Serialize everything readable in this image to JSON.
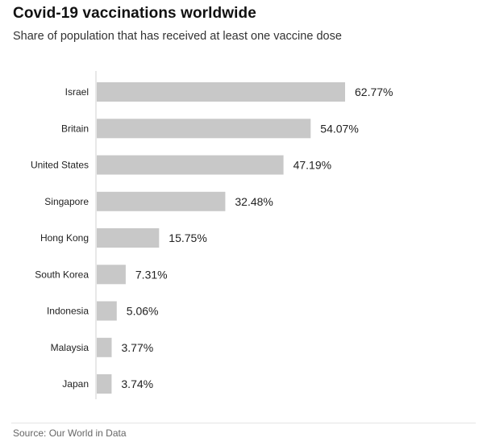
{
  "header": {
    "title": "Covid-19 vaccinations worldwide",
    "subtitle": "Share of population that has received at least one vaccine dose"
  },
  "footer": {
    "source": "Source: Our World in Data"
  },
  "colors": {
    "bar": "#c8c8c8",
    "axis": "#d0d0d0",
    "label": "#222222"
  },
  "chart_data": {
    "type": "bar",
    "orientation": "horizontal",
    "title": "Covid-19 vaccinations worldwide",
    "subtitle": "Share of population that has received at least one vaccine dose",
    "categories": [
      "Israel",
      "Britain",
      "United States",
      "Singapore",
      "Hong Kong",
      "South Korea",
      "Indonesia",
      "Malaysia",
      "Japan"
    ],
    "values": [
      62.77,
      54.07,
      47.19,
      32.48,
      15.75,
      7.31,
      5.06,
      3.77,
      3.74
    ],
    "value_labels": [
      "62.77%",
      "54.07%",
      "47.19%",
      "32.48%",
      "15.75%",
      "7.31%",
      "5.06%",
      "3.77%",
      "3.74%"
    ],
    "xlim": [
      0,
      62.77
    ],
    "grid": false,
    "legend": "none"
  }
}
